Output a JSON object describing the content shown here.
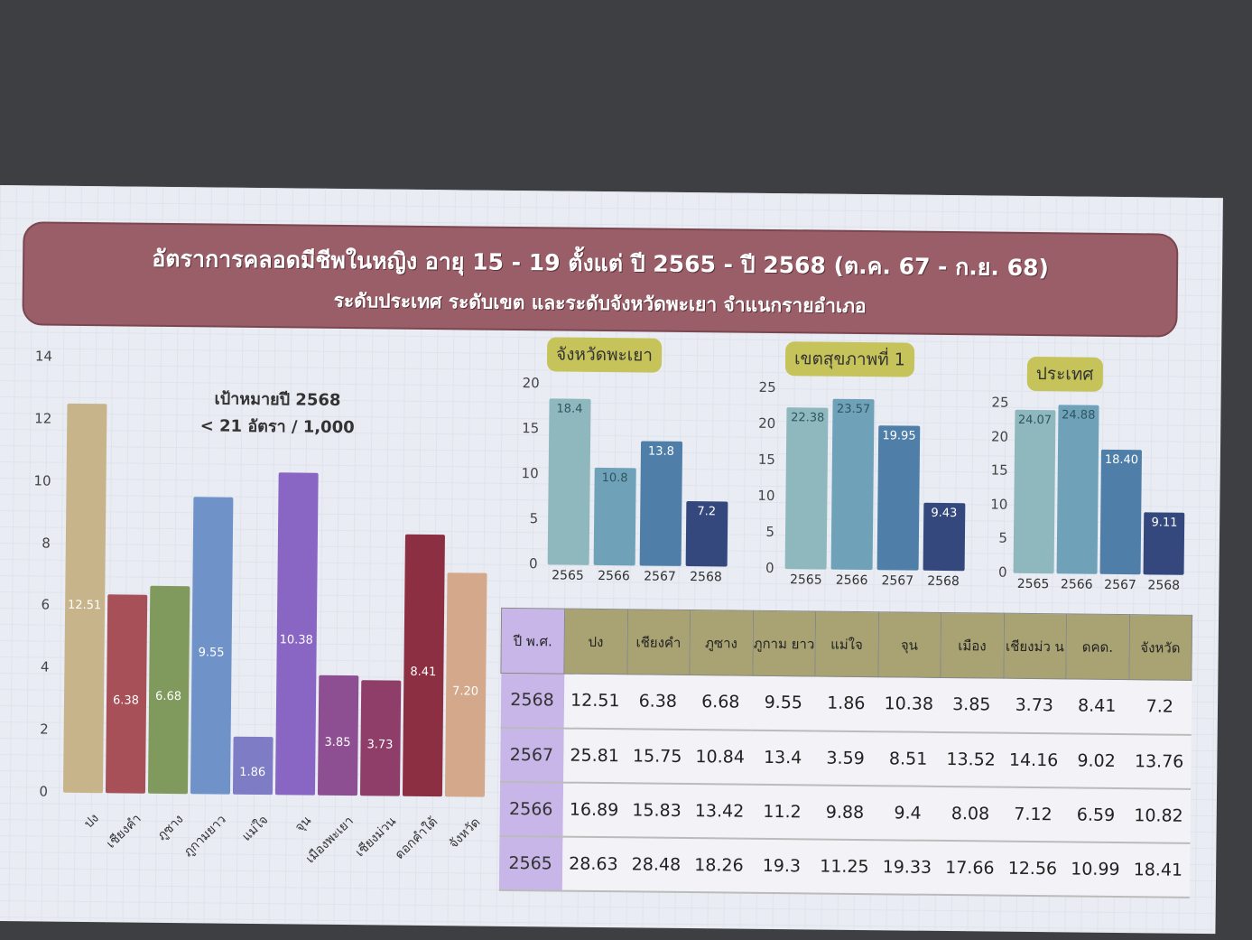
{
  "title": "อัตราการคลอดมีชีพในหญิง อายุ 15 - 19 ตั้งแต่ ปี 2565 - ปี 2568 (ต.ค. 67 - ก.ย. 68)",
  "subtitle": "ระดับประเทศ ระดับเขต และระดับจังหวัดพะเยา จำแนกรายอำเภอ",
  "target": {
    "line1": "เป้าหมายปี 2568",
    "line2": "< 21 อัตรา / 1,000"
  },
  "chart_data": [
    {
      "type": "bar",
      "title": "",
      "categories": [
        "ปง",
        "เชียงคำ",
        "ภูซาง",
        "ภูกามยาว",
        "แม่ใจ",
        "จุน",
        "เมืองพะเยา",
        "เชียงม่วน",
        "ดอกคำใต้",
        "จังหวัด"
      ],
      "values": [
        12.51,
        6.38,
        6.68,
        9.55,
        1.86,
        10.38,
        3.85,
        3.73,
        8.41,
        7.2
      ],
      "labels": [
        "12.51",
        "6.38",
        "6.68",
        "9.55",
        "1.86",
        "10.38",
        "3.85",
        "3.73",
        "8.41",
        "7.20"
      ],
      "colors": [
        "#c8b48a",
        "#a85058",
        "#7f9a5c",
        "#6f93c8",
        "#7d7cc4",
        "#8a66c4",
        "#8d4f92",
        "#8f3e6a",
        "#8c2f42",
        "#d4a88a"
      ],
      "ylim": [
        0,
        14
      ],
      "yticks": [
        0,
        2,
        4,
        6,
        8,
        10,
        12,
        14
      ]
    },
    {
      "type": "bar",
      "title": "จังหวัดพะเยา",
      "categories": [
        "2565",
        "2566",
        "2567",
        "2568"
      ],
      "values": [
        18.4,
        10.8,
        13.8,
        7.2
      ],
      "labels": [
        "18.4",
        "10.8",
        "13.8",
        "7.2"
      ],
      "ylim": [
        0,
        20
      ],
      "yticks": [
        0,
        5,
        10,
        15,
        20
      ]
    },
    {
      "type": "bar",
      "title": "เขตสุขภาพที่ 1",
      "categories": [
        "2565",
        "2566",
        "2567",
        "2568"
      ],
      "values": [
        22.38,
        23.57,
        19.95,
        9.43
      ],
      "labels": [
        "22.38",
        "23.57",
        "19.95",
        "9.43"
      ],
      "ylim": [
        0,
        25
      ],
      "yticks": [
        0,
        5,
        10,
        15,
        20,
        25
      ]
    },
    {
      "type": "bar",
      "title": "ประเทศ",
      "categories": [
        "2565",
        "2566",
        "2567",
        "2568"
      ],
      "values": [
        24.07,
        24.88,
        18.4,
        9.11
      ],
      "labels": [
        "24.07",
        "24.88",
        "18.40",
        "9.11"
      ],
      "ylim": [
        0,
        25
      ],
      "yticks": [
        0,
        5,
        10,
        15,
        20,
        25
      ]
    }
  ],
  "table": {
    "headers": [
      "ปี พ.ศ.",
      "ปง",
      "เชียงคำ",
      "ภูซาง",
      "ภูกาม ยาว",
      "แม่ใจ",
      "จุน",
      "เมือง",
      "เชียงม่ว น",
      "ดคด.",
      "จังหวัด"
    ],
    "rows": [
      [
        "2568",
        "12.51",
        "6.38",
        "6.68",
        "9.55",
        "1.86",
        "10.38",
        "3.85",
        "3.73",
        "8.41",
        "7.2"
      ],
      [
        "2567",
        "25.81",
        "15.75",
        "10.84",
        "13.4",
        "3.59",
        "8.51",
        "13.52",
        "14.16",
        "9.02",
        "13.76"
      ],
      [
        "2566",
        "16.89",
        "15.83",
        "13.42",
        "11.2",
        "9.88",
        "9.4",
        "8.08",
        "7.12",
        "6.59",
        "10.82"
      ],
      [
        "2565",
        "28.63",
        "28.48",
        "18.26",
        "19.3",
        "11.25",
        "19.33",
        "17.66",
        "12.56",
        "10.99",
        "18.41"
      ]
    ]
  },
  "small_colors": [
    "#8fb8be",
    "#6fa2b8",
    "#4f7fa8",
    "#34487e"
  ]
}
